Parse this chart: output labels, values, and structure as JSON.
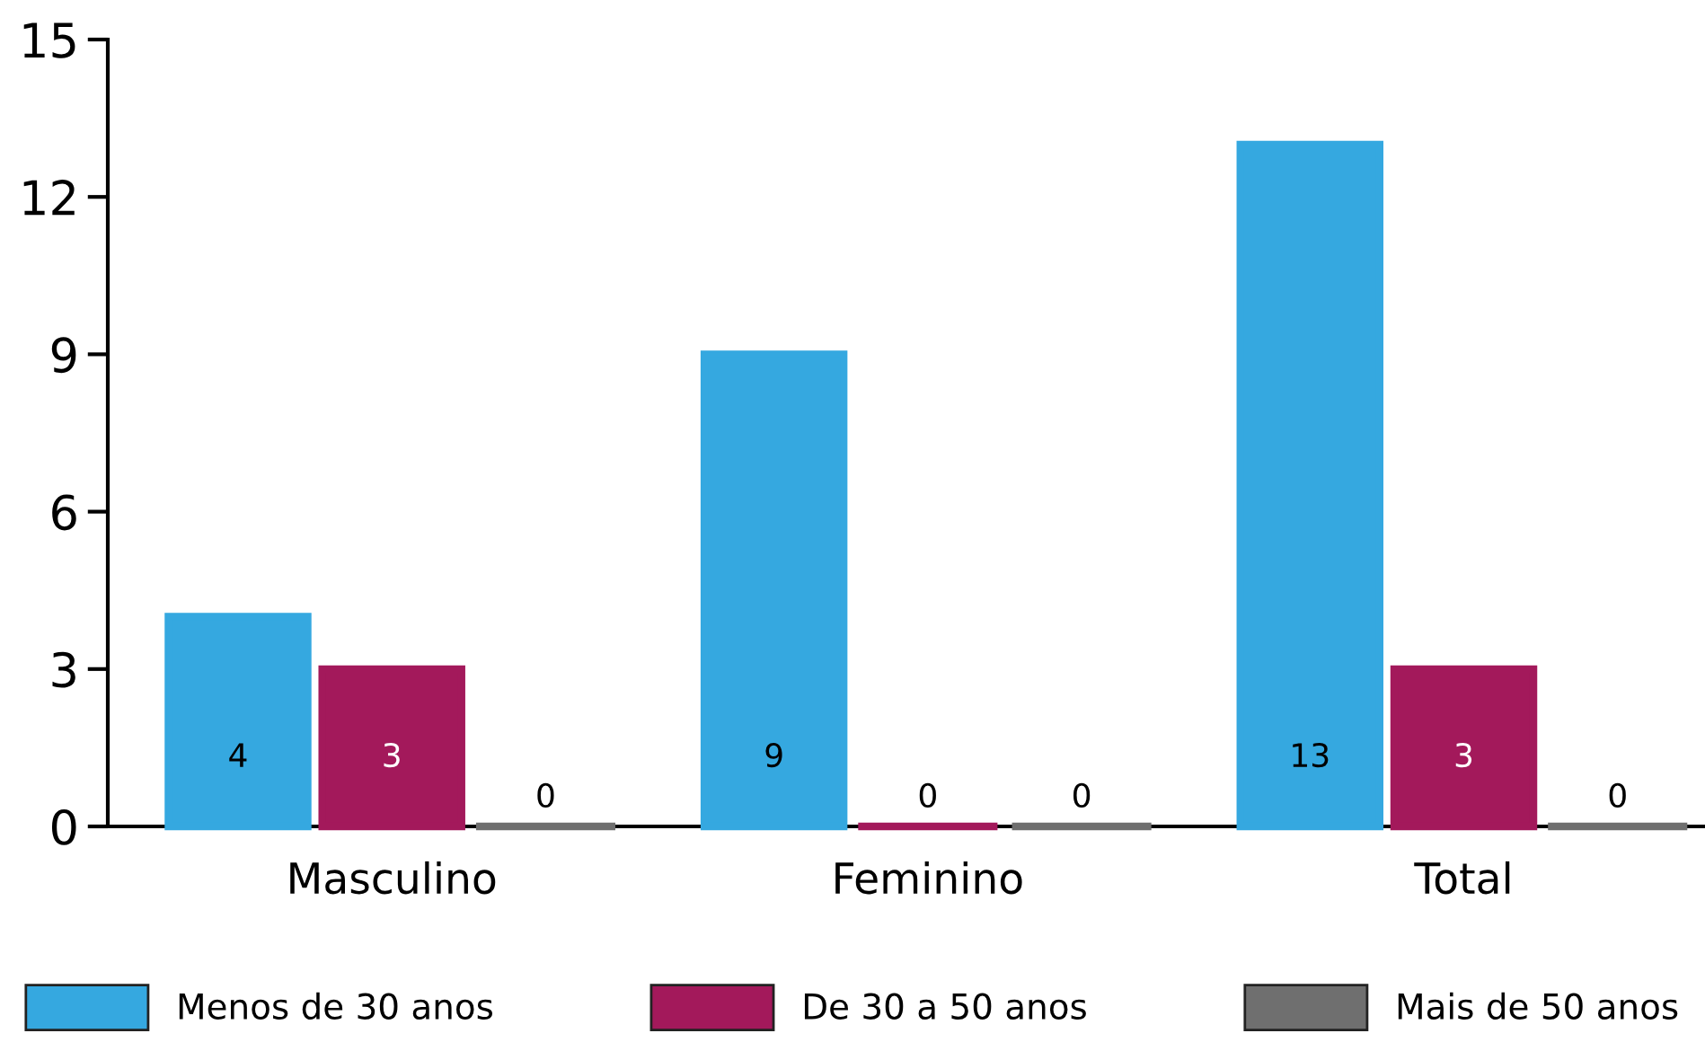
{
  "chart_data": {
    "type": "bar",
    "categories": [
      "Masculino",
      "Feminino",
      "Total"
    ],
    "series": [
      {
        "name": "Menos de 30 anos",
        "color": "#35a8e0",
        "values": [
          4,
          9,
          13
        ]
      },
      {
        "name": "De 30 a 50 anos",
        "color": "#a3195b",
        "values": [
          3,
          0,
          3
        ]
      },
      {
        "name": "Mais de 50 anos",
        "color": "#6f6f6f",
        "values": [
          0,
          0,
          0
        ]
      }
    ],
    "ylim": [
      0,
      15
    ],
    "yticks": [
      0,
      3,
      6,
      9,
      12,
      15
    ],
    "data_labels": true,
    "grid": false,
    "legend": "bottom"
  }
}
